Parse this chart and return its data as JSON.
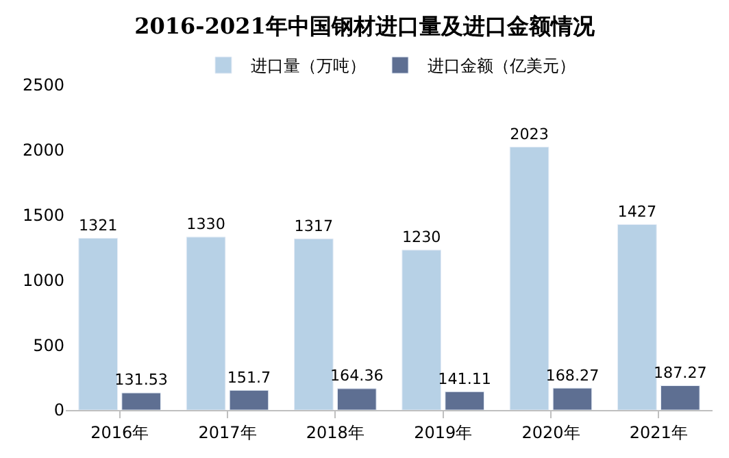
{
  "chart_data": {
    "type": "bar",
    "title": "2016-2021年中国钢材进口量及进口金额情况",
    "categories": [
      "2016年",
      "2017年",
      "2018年",
      "2019年",
      "2020年",
      "2021年"
    ],
    "series": [
      {
        "name": "进口量（万吨）",
        "color": "#b7d1e6",
        "values": [
          1321,
          1330,
          1317,
          1230,
          2023,
          1427
        ]
      },
      {
        "name": "进口金额（亿美元）",
        "color": "#5e6f92",
        "values": [
          131.53,
          151.7,
          164.36,
          141.11,
          168.27,
          187.27
        ]
      }
    ],
    "ylim": [
      0,
      2500
    ],
    "yticks": [
      0,
      500,
      1000,
      1500,
      2000,
      2500
    ],
    "legend": "top",
    "data_labels": true
  }
}
